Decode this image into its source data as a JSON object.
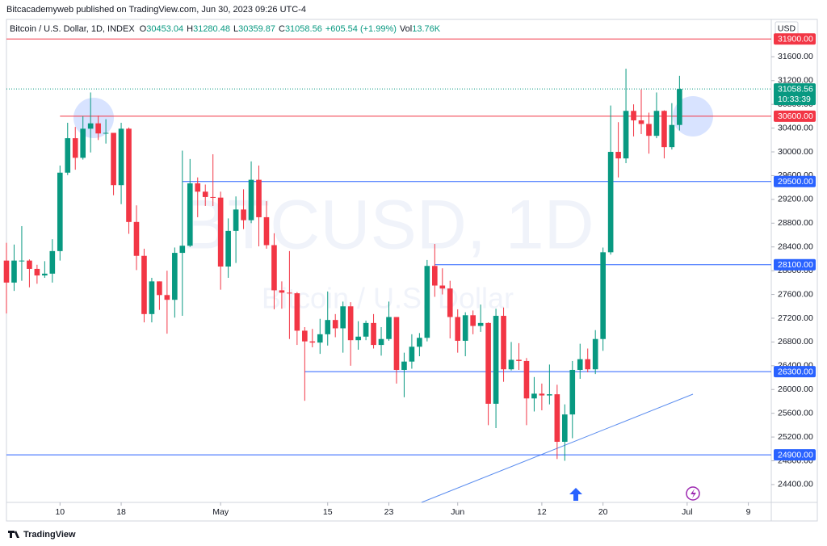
{
  "header": "Bitcacademyweb published on TradingView.com, Jun 30, 2023 09:26 UTC-4",
  "footer": "TradingView",
  "chart_data": {
    "type": "candlestick",
    "title": "Bitcoin / U.S. Dollar, 1D, INDEX",
    "legend_values": [
      {
        "label": "O",
        "value": "30453.04"
      },
      {
        "label": "H",
        "value": "31280.48"
      },
      {
        "label": "L",
        "value": "30359.87"
      },
      {
        "label": "C",
        "value": "31058.56"
      },
      {
        "label": "",
        "value": "+605.54 (+1.99%)"
      },
      {
        "label": "Vol",
        "value": "13.76K"
      }
    ],
    "watermark": [
      "BTCUSD, 1D",
      "Bitcoin / U.S. Dollar"
    ],
    "currency": "USD",
    "countdown": "10:33:39",
    "up_color": "#089981",
    "down_color": "#f23645",
    "x": [
      "2023-04-03",
      "2023-04-04",
      "2023-04-05",
      "2023-04-06",
      "2023-04-07",
      "2023-04-08",
      "2023-04-09",
      "2023-04-10",
      "2023-04-11",
      "2023-04-12",
      "2023-04-13",
      "2023-04-14",
      "2023-04-15",
      "2023-04-16",
      "2023-04-17",
      "2023-04-18",
      "2023-04-19",
      "2023-04-20",
      "2023-04-21",
      "2023-04-22",
      "2023-04-23",
      "2023-04-24",
      "2023-04-25",
      "2023-04-26",
      "2023-04-27",
      "2023-04-28",
      "2023-04-29",
      "2023-04-30",
      "2023-05-01",
      "2023-05-02",
      "2023-05-03",
      "2023-05-04",
      "2023-05-05",
      "2023-05-06",
      "2023-05-07",
      "2023-05-08",
      "2023-05-09",
      "2023-05-10",
      "2023-05-11",
      "2023-05-12",
      "2023-05-13",
      "2023-05-14",
      "2023-05-15",
      "2023-05-16",
      "2023-05-17",
      "2023-05-18",
      "2023-05-19",
      "2023-05-20",
      "2023-05-21",
      "2023-05-22",
      "2023-05-23",
      "2023-05-24",
      "2023-05-25",
      "2023-05-26",
      "2023-05-27",
      "2023-05-28",
      "2023-05-29",
      "2023-05-30",
      "2023-05-31",
      "2023-06-01",
      "2023-06-02",
      "2023-06-03",
      "2023-06-04",
      "2023-06-05",
      "2023-06-06",
      "2023-06-07",
      "2023-06-08",
      "2023-06-09",
      "2023-06-10",
      "2023-06-11",
      "2023-06-12",
      "2023-06-13",
      "2023-06-14",
      "2023-06-15",
      "2023-06-16",
      "2023-06-17",
      "2023-06-18",
      "2023-06-19",
      "2023-06-20",
      "2023-06-21",
      "2023-06-22",
      "2023-06-23",
      "2023-06-24",
      "2023-06-25",
      "2023-06-26",
      "2023-06-27",
      "2023-06-28",
      "2023-06-29",
      "2023-06-30"
    ],
    "open": [
      28170,
      27800,
      28170,
      28170,
      28030,
      27920,
      27950,
      28330,
      29650,
      30230,
      29900,
      30390,
      30480,
      30310,
      30320,
      29440,
      30390,
      28820,
      28250,
      27270,
      27820,
      27590,
      27510,
      28300,
      28420,
      29470,
      29330,
      29240,
      29230,
      28070,
      28670,
      29030,
      28850,
      29530,
      28900,
      28430,
      27670,
      27630,
      27620,
      26990,
      26810,
      26790,
      26930,
      27170,
      27030,
      27400,
      26830,
      26890,
      27120,
      26750,
      26850,
      27220,
      26330,
      26470,
      26720,
      26870,
      28080,
      27750,
      27700,
      27220,
      26820,
      27250,
      27070,
      27120,
      25760,
      27240,
      26340,
      26500,
      26480,
      25850,
      25930,
      25900,
      25920,
      25120,
      25580,
      26330,
      26510,
      26340,
      26850,
      28310,
      30000,
      29890,
      30690,
      30530,
      30470,
      30270,
      30690,
      30080,
      30453.04
    ],
    "high": [
      28470,
      28440,
      28750,
      28190,
      28100,
      28160,
      28530,
      29770,
      30490,
      30420,
      30600,
      31000,
      30610,
      30550,
      30320,
      30490,
      30410,
      29100,
      28370,
      27880,
      27820,
      28000,
      28390,
      30020,
      29880,
      29570,
      29450,
      29960,
      29330,
      28880,
      29250,
      29370,
      29840,
      29770,
      29170,
      28630,
      27820,
      28330,
      27640,
      27050,
      27020,
      27190,
      27650,
      27270,
      27480,
      27470,
      27150,
      27160,
      27270,
      27050,
      27480,
      27220,
      26620,
      26930,
      26950,
      28180,
      28450,
      28040,
      27830,
      27350,
      27300,
      27330,
      27430,
      27130,
      27360,
      27380,
      26800,
      26780,
      26530,
      26210,
      26100,
      26420,
      26080,
      25750,
      26480,
      26770,
      26690,
      27000,
      28390,
      30780,
      30500,
      31400,
      30800,
      31050,
      30660,
      31000,
      30700,
      30820,
      31280.48
    ],
    "low": [
      27280,
      27660,
      27830,
      27720,
      27780,
      27880,
      27800,
      28170,
      29610,
      29700,
      29870,
      29990,
      30200,
      30140,
      29270,
      29120,
      28620,
      28010,
      27130,
      27130,
      27340,
      26940,
      27210,
      27240,
      28400,
      28900,
      29090,
      29090,
      27680,
      27880,
      28130,
      28700,
      28800,
      28410,
      28370,
      27350,
      27360,
      26850,
      26750,
      25810,
      26710,
      26600,
      26740,
      26880,
      26620,
      26400,
      26670,
      26830,
      26690,
      26570,
      26820,
      26100,
      25870,
      26350,
      26560,
      26810,
      27560,
      27600,
      26860,
      26620,
      26560,
      26930,
      26970,
      25400,
      25350,
      26130,
      26320,
      26330,
      25400,
      25630,
      25650,
      25750,
      24830,
      24800,
      25180,
      26180,
      26290,
      26260,
      26650,
      28270,
      29570,
      29810,
      30260,
      30300,
      29970,
      30230,
      29890,
      30040,
      30359.87
    ],
    "close": [
      27800,
      28170,
      28170,
      28030,
      27920,
      27950,
      28330,
      29650,
      30230,
      29900,
      30390,
      30480,
      30310,
      30320,
      29440,
      30390,
      28820,
      28250,
      27270,
      27820,
      27590,
      27510,
      28300,
      28420,
      29470,
      29330,
      29240,
      29230,
      28070,
      28670,
      29030,
      28850,
      29530,
      28900,
      28430,
      27670,
      27630,
      27620,
      26990,
      26810,
      26790,
      26930,
      27170,
      27030,
      27400,
      26830,
      26890,
      27120,
      26750,
      26850,
      27220,
      26330,
      26470,
      26720,
      26870,
      28080,
      27750,
      27700,
      27220,
      26820,
      27250,
      27070,
      27120,
      25760,
      27240,
      26340,
      26500,
      26480,
      25850,
      25930,
      25900,
      25920,
      25120,
      25580,
      26330,
      26510,
      26340,
      26850,
      28310,
      30000,
      29890,
      30690,
      30530,
      30470,
      30270,
      30690,
      30080,
      30453.04,
      31058.56
    ],
    "xlim": [
      "2023-04-03",
      "2023-07-12"
    ],
    "xticks": [
      {
        "value": "2023-04-10",
        "label": "10"
      },
      {
        "value": "2023-04-18",
        "label": "18"
      },
      {
        "value": "2023-05-01",
        "label": "May"
      },
      {
        "value": "2023-05-15",
        "label": "15"
      },
      {
        "value": "2023-05-23",
        "label": "23"
      },
      {
        "value": "2023-06-01",
        "label": "Jun"
      },
      {
        "value": "2023-06-12",
        "label": "12"
      },
      {
        "value": "2023-06-20",
        "label": "20"
      },
      {
        "value": "2023-07-01",
        "label": "Jul"
      },
      {
        "value": "2023-07-09",
        "label": "9"
      }
    ],
    "ylim": [
      24100,
      32230
    ],
    "yticks": [
      {
        "value": 24400,
        "label": "24400.00"
      },
      {
        "value": 24800,
        "label": "24800.00"
      },
      {
        "value": 25200,
        "label": "25200.00"
      },
      {
        "value": 25600,
        "label": "25600.00"
      },
      {
        "value": 26000,
        "label": "26000.00"
      },
      {
        "value": 26400,
        "label": "26400.00"
      },
      {
        "value": 26800,
        "label": "26800.00"
      },
      {
        "value": 27200,
        "label": "27200.00"
      },
      {
        "value": 27600,
        "label": "27600.00"
      },
      {
        "value": 28000,
        "label": "28000.00"
      },
      {
        "value": 28400,
        "label": "28400.00"
      },
      {
        "value": 28800,
        "label": "28800.00"
      },
      {
        "value": 29200,
        "label": "29200.00"
      },
      {
        "value": 29600,
        "label": "29600.00"
      },
      {
        "value": 30000,
        "label": "30000.00"
      },
      {
        "value": 30400,
        "label": "30400.00"
      },
      {
        "value": 30800,
        "label": "30800.00"
      },
      {
        "value": 31200,
        "label": "31200.00"
      },
      {
        "value": 31600,
        "label": "31600.00"
      }
    ],
    "grid": false,
    "levels": [
      {
        "value": 31900,
        "label": "31900.00",
        "color": "#f23645"
      },
      {
        "value": 30600,
        "label": "30600.00",
        "color": "#f23645",
        "start": "2023-04-10"
      },
      {
        "value": 29500,
        "label": "29500.00",
        "color": "#2962ff",
        "start": "2023-04-26"
      },
      {
        "value": 28100,
        "label": "28100.00",
        "color": "#2962ff",
        "start": "2023-05-29"
      },
      {
        "value": 26300,
        "label": "26300.00",
        "color": "#2962ff",
        "start": "2023-05-12"
      },
      {
        "value": 24900,
        "label": "24900.00",
        "color": "#2962ff"
      }
    ]
  }
}
